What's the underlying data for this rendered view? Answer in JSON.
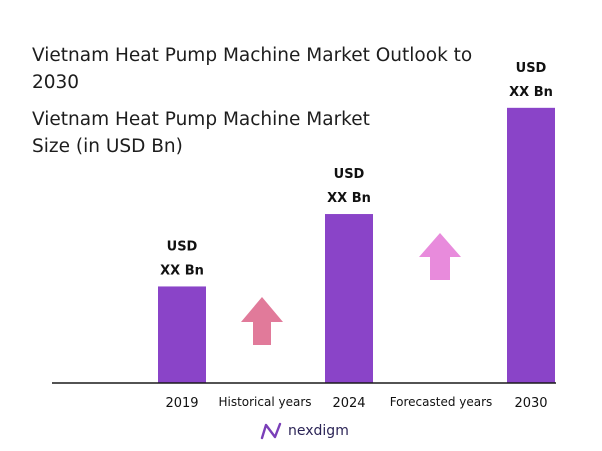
{
  "title": "Vietnam Heat Pump Machine Market Outlook to 2030",
  "subtitle": "Vietnam Heat Pump Machine Market Size (in USD Bn)",
  "chart_data": {
    "type": "bar",
    "categories": [
      "2019",
      "2024",
      "2030"
    ],
    "values": [
      2.0,
      3.5,
      5.7
    ],
    "value_labels": [
      [
        "USD",
        "XX Bn"
      ],
      [
        "USD",
        "XX Bn"
      ],
      [
        "USD",
        "XX Bn"
      ]
    ],
    "ylim": [
      0,
      5.8
    ],
    "bar_color": "#8a44c8",
    "grid": false,
    "between_labels": [
      "Historical years",
      "Forecasted years"
    ]
  },
  "arrows": [
    {
      "name": "historical-arrow",
      "color": "#e17a9a"
    },
    {
      "name": "forecast-arrow",
      "color": "#e88bdc"
    }
  ],
  "brand": {
    "name": "nexdigm",
    "color": "#7a3fb8"
  }
}
